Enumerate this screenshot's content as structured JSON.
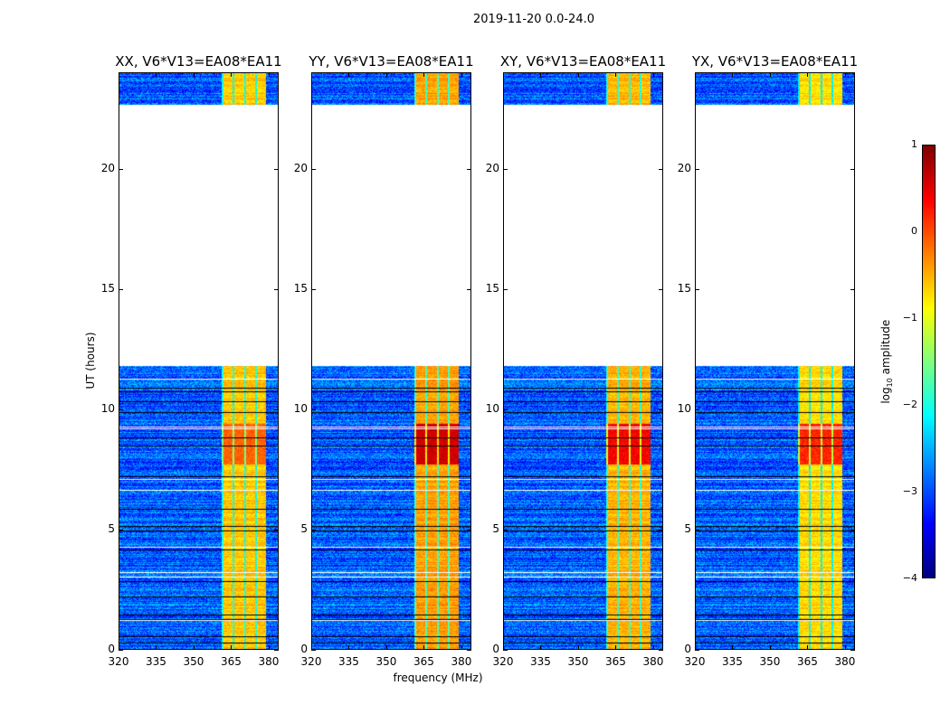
{
  "chart_data": {
    "type": "heatmap",
    "title": "2019-11-20 0.0-24.0",
    "xlabel": "frequency (MHz)",
    "ylabel": "UT (hours)",
    "xlim": [
      320,
      384
    ],
    "ylim": [
      0,
      24
    ],
    "xticks": [
      "320",
      "335",
      "350",
      "365",
      "380"
    ],
    "xtick_values": [
      320,
      335,
      350,
      365,
      380
    ],
    "yticks": [
      "0",
      "5",
      "10",
      "15",
      "20"
    ],
    "ytick_values": [
      0,
      5,
      10,
      15,
      20
    ],
    "panels": [
      {
        "title": "XX, V6*V13=EA08*EA11",
        "band_level": -0.6,
        "peak_level": -0.1
      },
      {
        "title": "YY, V6*V13=EA08*EA11",
        "band_level": -0.4,
        "peak_level": 0.6
      },
      {
        "title": "XY, V6*V13=EA08*EA11",
        "band_level": -0.5,
        "peak_level": 0.4
      },
      {
        "title": "YX, V6*V13=EA08*EA11",
        "band_level": -0.7,
        "peak_level": 0.2
      }
    ],
    "data_coverage_hours": [
      [
        0,
        11.8
      ],
      [
        22.7,
        24
      ]
    ],
    "bright_band_MHz": [
      361,
      379
    ],
    "background_level": -2.9,
    "colorbar": {
      "label_prefix": "log",
      "label_sub": "10",
      "label_suffix": " amplitude",
      "range": [
        -4,
        1
      ],
      "ticks": [
        "1",
        "0",
        "−1",
        "−2",
        "−3",
        "−4"
      ],
      "tick_values": [
        1,
        0,
        -1,
        -2,
        -3,
        -4
      ],
      "colormap": "jet"
    }
  }
}
